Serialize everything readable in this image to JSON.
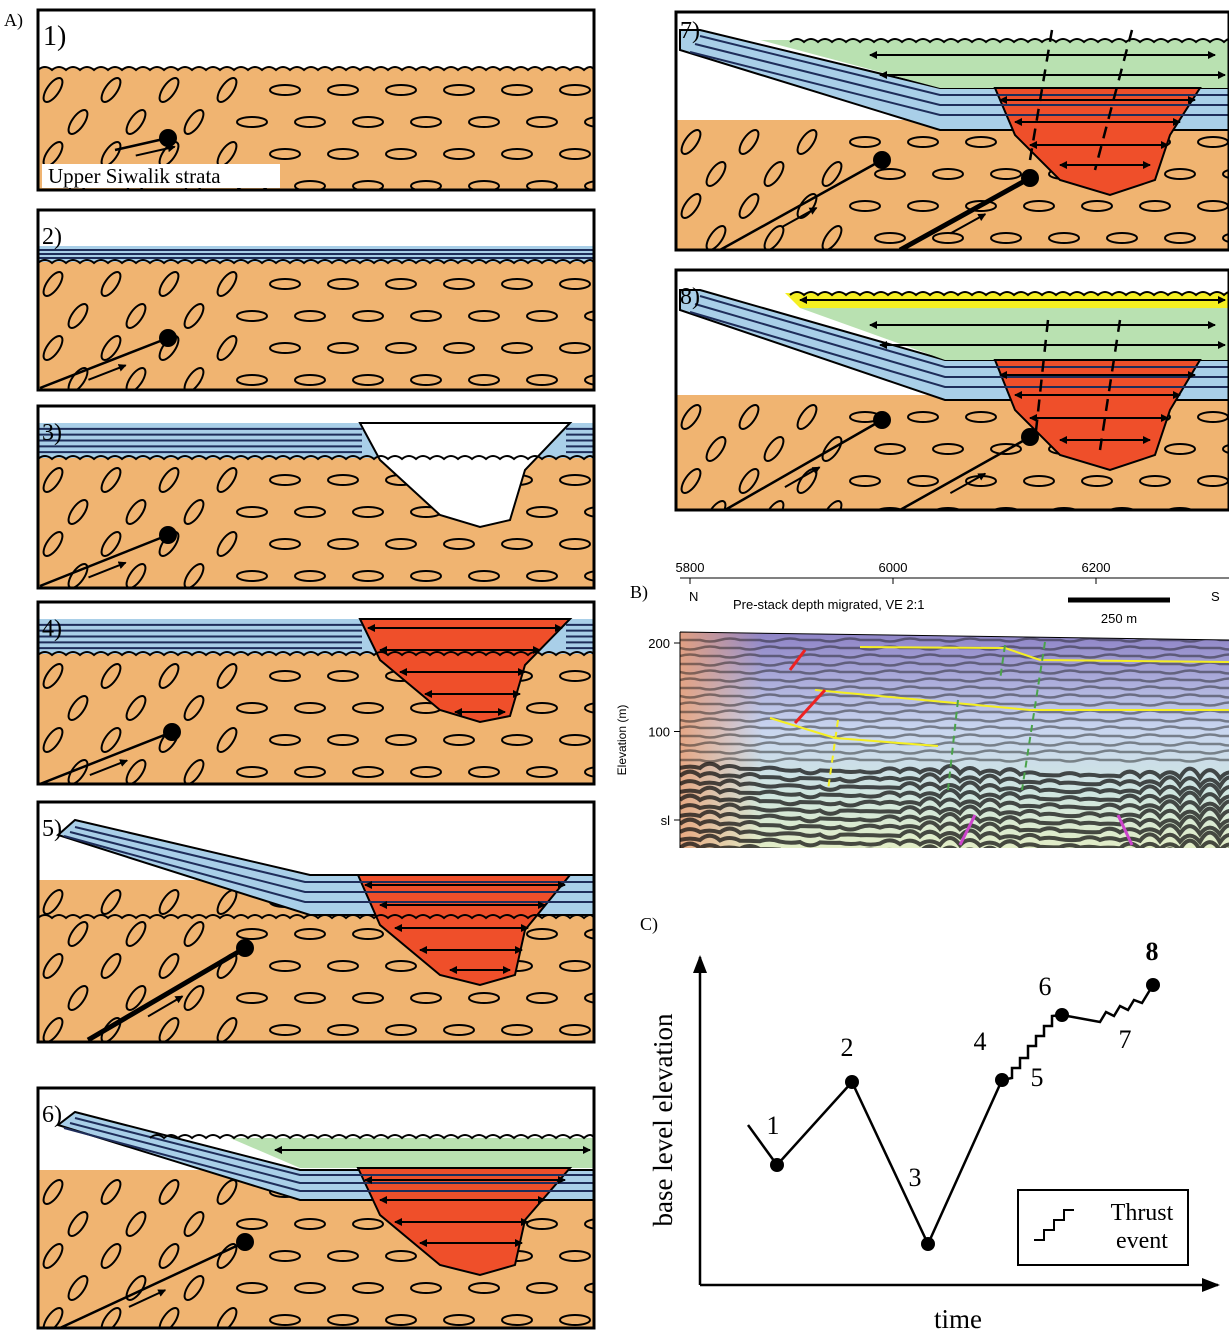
{
  "panel_a": {
    "label": "A)",
    "steps": [
      "1)",
      "2)",
      "3)",
      "4)",
      "5)",
      "6)",
      "7)",
      "8)"
    ],
    "strata_label": "Upper Siwalik strata"
  },
  "panel_b": {
    "label": "B)",
    "x_ticks": [
      5800,
      6000,
      6200
    ],
    "y_ticks": [
      200,
      100,
      {
        "value": 0,
        "label": "sl"
      }
    ],
    "y_axis_title": "Elevation (m)",
    "left_end": "N",
    "right_end": "S",
    "caption": "Pre-stack depth migrated, VE 2:1",
    "scale_bar": "250 m"
  },
  "panel_c": {
    "label": "C)",
    "points": [
      "1",
      "2",
      "3",
      "4",
      "5",
      "6",
      "7",
      "8"
    ],
    "y_axis_title": "base level elevation",
    "x_axis_title": "time",
    "legend": [
      "Thrust",
      "event"
    ]
  }
}
